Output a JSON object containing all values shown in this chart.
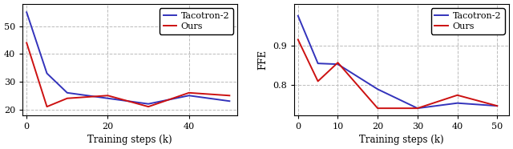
{
  "chart1": {
    "tacotron2_x": [
      0,
      5,
      10,
      20,
      30,
      40,
      50
    ],
    "tacotron2_y": [
      55,
      33,
      26,
      24,
      22,
      25,
      23
    ],
    "ours_x": [
      0,
      5,
      10,
      20,
      30,
      40,
      50
    ],
    "ours_y": [
      44,
      21,
      24,
      25,
      21,
      26,
      25
    ],
    "xlabel": "Training steps (k)",
    "ylabel": "",
    "xlim": [
      -1,
      52
    ],
    "ylim": [
      18,
      58
    ],
    "yticks": [
      20,
      30,
      40,
      50
    ],
    "xticks": [
      0,
      20,
      40
    ]
  },
  "chart2": {
    "tacotron2_x": [
      0,
      5,
      10,
      20,
      30,
      40,
      50
    ],
    "tacotron2_y": [
      0.975,
      0.855,
      0.853,
      0.79,
      0.742,
      0.755,
      0.748
    ],
    "ours_x": [
      0,
      5,
      10,
      20,
      30,
      40,
      50
    ],
    "ours_y": [
      0.915,
      0.81,
      0.857,
      0.742,
      0.742,
      0.775,
      0.748
    ],
    "xlabel": "Training steps (k)",
    "ylabel": "FFE",
    "xlim": [
      -1,
      53
    ],
    "ylim": [
      0.725,
      1.005
    ],
    "yticks": [
      0.8,
      0.9
    ],
    "xticks": [
      0,
      10,
      20,
      30,
      40,
      50
    ]
  },
  "tacotron2_color": "#3333bb",
  "ours_color": "#cc1111",
  "legend_tacotron2": "Tacotron-2",
  "legend_ours": "Ours",
  "grid_color": "#bbbbbb",
  "bg_color": "#ffffff"
}
